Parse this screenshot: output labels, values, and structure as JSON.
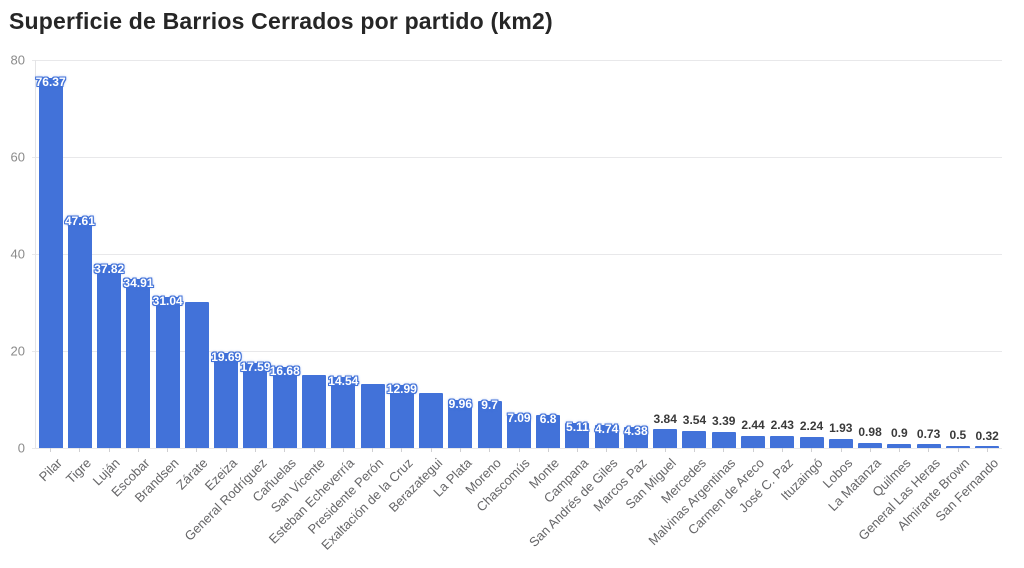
{
  "chart_data": {
    "type": "bar",
    "title": "Superficie de Barrios Cerrados por partido (km2)",
    "xlabel": "",
    "ylabel": "",
    "ylim": [
      0,
      80
    ],
    "yticks": [
      0,
      20,
      40,
      60,
      80
    ],
    "grid": "horizontal",
    "legend": "none",
    "bar_color": "#4272d9",
    "inside_label_color": "#ffffff",
    "above_label_color": "#3a3a3a",
    "categories": [
      "Pilar",
      "Tigre",
      "Luján",
      "Escobar",
      "Brandsen",
      "Zárate",
      "Ezeiza",
      "General Rodríguez",
      "Cañuelas",
      "San Vicente",
      "Esteban Echeverría",
      "Presidente Perón",
      "Exaltación de la Cruz",
      "Berazategui",
      "La Plata",
      "Moreno",
      "Chascomús",
      "Monte",
      "Campana",
      "San Andrés de Giles",
      "Marcos Paz",
      "San Miguel",
      "Mercedes",
      "Malvinas Argentinas",
      "Carmen de Areco",
      "José C. Paz",
      "Ituzaingó",
      "Lobos",
      "La Matanza",
      "Quilmes",
      "General Las Heras",
      "Almirante Brown",
      "San Fernando"
    ],
    "values": [
      76.37,
      47.61,
      37.82,
      34.91,
      31.04,
      30.2,
      19.69,
      17.59,
      16.68,
      15.1,
      14.54,
      13.3,
      12.99,
      11.4,
      9.96,
      9.7,
      7.09,
      6.8,
      5.11,
      4.74,
      4.38,
      3.84,
      3.54,
      3.39,
      2.44,
      2.43,
      2.24,
      1.93,
      0.98,
      0.9,
      0.73,
      0.5,
      0.32
    ],
    "value_labels": [
      "76.37",
      "47.61",
      "37.82",
      "34.91",
      "31.04",
      "",
      "19.69",
      "17.59",
      "16.68",
      "",
      "14.54",
      "",
      "12.99",
      "",
      "9.96",
      "9.7",
      "7.09",
      "6.8",
      "5.11",
      "4.74",
      "4.38",
      "3.84",
      "3.54",
      "3.39",
      "2.44",
      "2.43",
      "2.24",
      "1.93",
      "0.98",
      "0.9",
      "0.73",
      "0.5",
      "0.32"
    ],
    "label_positions": [
      "inside",
      "inside",
      "inside",
      "inside",
      "inside",
      "none",
      "inside",
      "inside",
      "inside",
      "none",
      "inside",
      "none",
      "inside",
      "none",
      "inside",
      "inside",
      "inside",
      "inside",
      "inside",
      "inside",
      "inside",
      "above",
      "above",
      "above",
      "above",
      "above",
      "above",
      "above",
      "above",
      "above",
      "above",
      "above",
      "above"
    ]
  }
}
